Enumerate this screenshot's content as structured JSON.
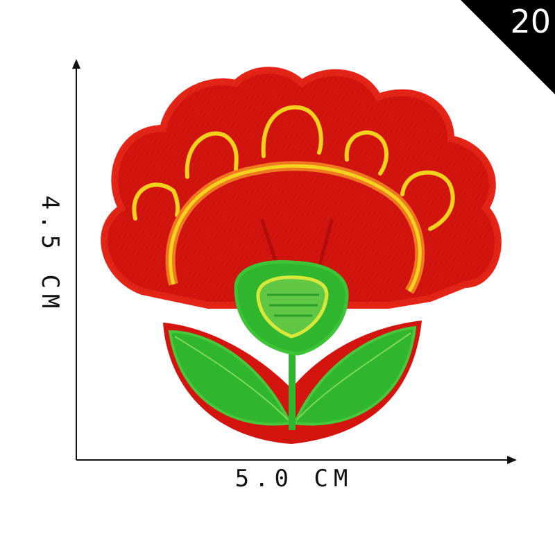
{
  "badge": {
    "number": "20"
  },
  "dimensions": {
    "width_label": "5.0 CM",
    "height_label": "4.5 CM"
  },
  "colors": {
    "red": "#d4150f",
    "red_dark": "#b30d0a",
    "orange": "#f07820",
    "yellow": "#f2d21c",
    "green": "#2fb52e",
    "green_light": "#7ed957"
  }
}
